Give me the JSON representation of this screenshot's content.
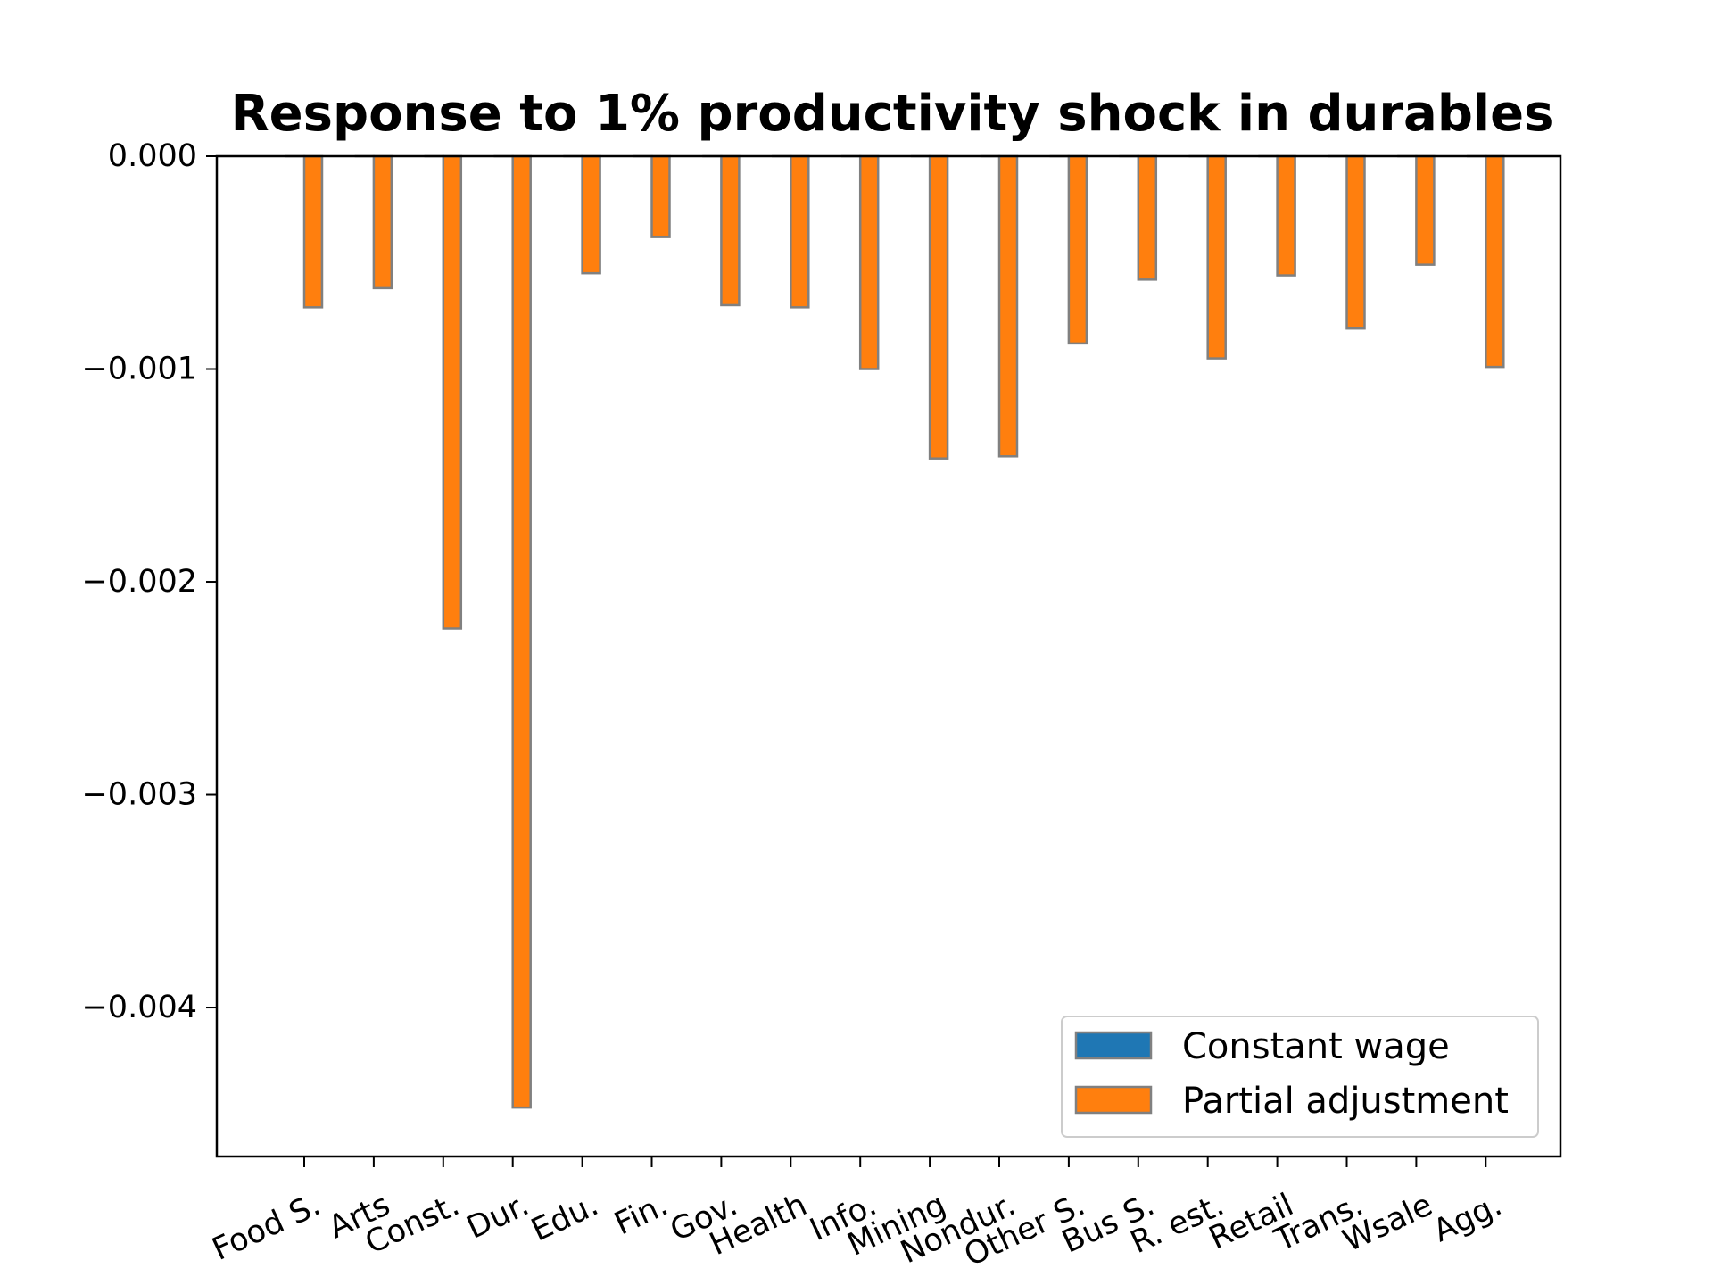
{
  "chart_data": {
    "type": "bar",
    "title": "Response to 1% productivity shock in durables",
    "xlabel": "",
    "ylabel": "",
    "categories": [
      "Food S.",
      "Arts",
      "Const.",
      "Dur.",
      "Edu.",
      "Fin.",
      "Gov.",
      "Health",
      "Info.",
      "Mining",
      "Nondur.",
      "Other S.",
      "Bus S.",
      "R. est.",
      "Retail",
      "Trans.",
      "Wsale",
      "Agg."
    ],
    "series": [
      {
        "name": "Constant wage",
        "color": "#1f77b4",
        "values": [
          0,
          0,
          0,
          0,
          0,
          0,
          0,
          0,
          0,
          0,
          0,
          0,
          0,
          0,
          0,
          0,
          0,
          0
        ]
      },
      {
        "name": "Partial adjustment",
        "color": "#ff7f0e",
        "values": [
          -0.00071,
          -0.00062,
          -0.00222,
          -0.00447,
          -0.00055,
          -0.00038,
          -0.0007,
          -0.00071,
          -0.001,
          -0.00142,
          -0.00141,
          -0.00088,
          -0.00058,
          -0.00095,
          -0.00056,
          -0.00081,
          -0.00051,
          -0.00099
        ]
      }
    ],
    "ylim": [
      -0.0047,
      0.0
    ],
    "yticks": [
      0.0,
      -0.001,
      -0.002,
      -0.003,
      -0.004
    ],
    "ytick_labels": [
      "0.000",
      "−0.001",
      "−0.002",
      "−0.003",
      "−0.004"
    ],
    "legend_position": "lower-right",
    "bar_edge_color": "#808080",
    "grid": false
  }
}
